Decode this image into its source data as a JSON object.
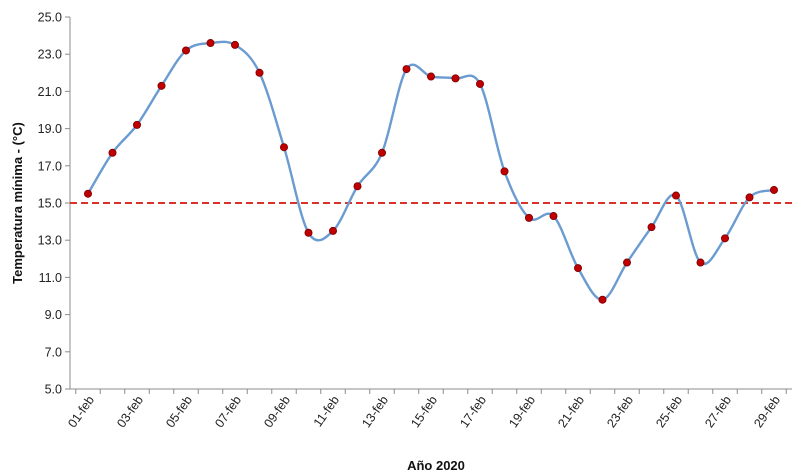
{
  "chart_data": {
    "type": "line",
    "xlabel": "Año 2020",
    "ylabel": "Temperatura mínima - (°C)",
    "ylim": [
      5.0,
      25.0
    ],
    "yticks": [
      "5.0",
      "7.0",
      "9.0",
      "11.0",
      "13.0",
      "15.0",
      "17.0",
      "19.0",
      "21.0",
      "23.0",
      "25.0"
    ],
    "x_tick_labels": [
      "01-feb",
      "03-feb",
      "05-feb",
      "07-feb",
      "09-feb",
      "11-feb",
      "13-feb",
      "15-feb",
      "17-feb",
      "19-feb",
      "21-feb",
      "23-feb",
      "25-feb",
      "27-feb",
      "29-feb"
    ],
    "categories": [
      "01-feb",
      "02-feb",
      "03-feb",
      "04-feb",
      "05-feb",
      "06-feb",
      "07-feb",
      "08-feb",
      "09-feb",
      "10-feb",
      "11-feb",
      "12-feb",
      "13-feb",
      "14-feb",
      "15-feb",
      "16-feb",
      "17-feb",
      "18-feb",
      "19-feb",
      "20-feb",
      "21-feb",
      "22-feb",
      "23-feb",
      "24-feb",
      "25-feb",
      "26-feb",
      "27-feb",
      "28-feb",
      "29-feb"
    ],
    "series": [
      {
        "values": [
          15.5,
          17.7,
          19.2,
          21.3,
          23.2,
          23.6,
          23.5,
          22.0,
          18.0,
          13.4,
          13.5,
          15.9,
          17.7,
          22.2,
          21.8,
          21.7,
          21.4,
          16.7,
          14.2,
          14.3,
          11.5,
          9.8,
          11.8,
          13.7,
          15.4,
          11.8,
          13.1,
          15.3,
          15.7
        ],
        "line_color": "#6a9bd1",
        "marker_color": "#c00000",
        "smooth": true
      }
    ],
    "reference_line": {
      "value": 15.0,
      "color": "#d9322b",
      "style": "dashed"
    },
    "grid": false,
    "legend": "none"
  }
}
